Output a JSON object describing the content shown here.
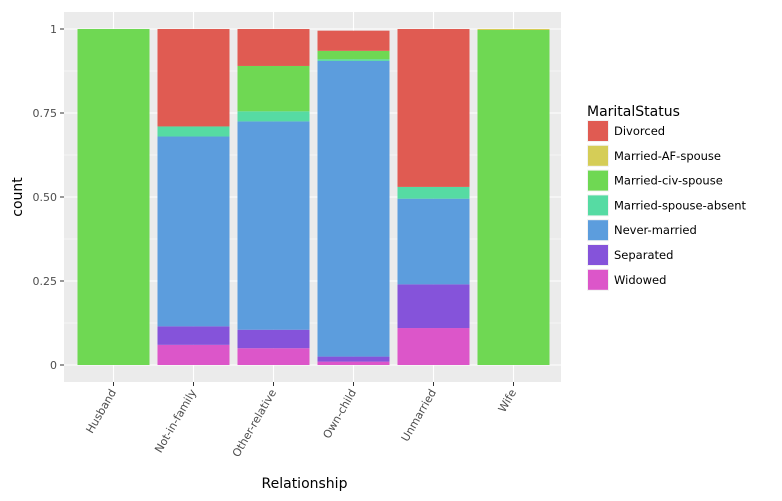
{
  "chart_data": {
    "type": "bar",
    "stacked": "fill",
    "title": "",
    "xlabel": "Relationship",
    "ylabel": "count",
    "ylim": [
      0,
      1
    ],
    "yticks": [
      0,
      0.25,
      0.5,
      0.75,
      1
    ],
    "ytick_labels": [
      "0",
      "0.25",
      "0.50",
      "0.75",
      "1"
    ],
    "categories": [
      "Husband",
      "Not-in-family",
      "Other-relative",
      "Own-child",
      "Unmarried",
      "Wife"
    ],
    "legend_title": "MaritalStatus",
    "legend_position": "right",
    "series": [
      {
        "name": "Divorced",
        "color": "#e05b52",
        "values": [
          0.0,
          0.29,
          0.11,
          0.06,
          0.47,
          0.0
        ]
      },
      {
        "name": "Married-AF-spouse",
        "color": "#d5cd57",
        "values": [
          0.0,
          0.0,
          0.0,
          0.0,
          0.0,
          0.003
        ]
      },
      {
        "name": "Married-civ-spouse",
        "color": "#6fd853",
        "values": [
          1.0,
          0.0,
          0.135,
          0.025,
          0.0,
          0.997
        ]
      },
      {
        "name": "Married-spouse-absent",
        "color": "#56dba3",
        "values": [
          0.0,
          0.03,
          0.03,
          0.005,
          0.035,
          0.0
        ]
      },
      {
        "name": "Never-married",
        "color": "#5c9ddd",
        "values": [
          0.0,
          0.565,
          0.62,
          0.88,
          0.255,
          0.0
        ]
      },
      {
        "name": "Separated",
        "color": "#8553da",
        "values": [
          0.0,
          0.055,
          0.055,
          0.015,
          0.13,
          0.0
        ]
      },
      {
        "name": "Widowed",
        "color": "#dc56c9",
        "values": [
          0.0,
          0.06,
          0.05,
          0.01,
          0.11,
          0.0
        ]
      }
    ]
  }
}
